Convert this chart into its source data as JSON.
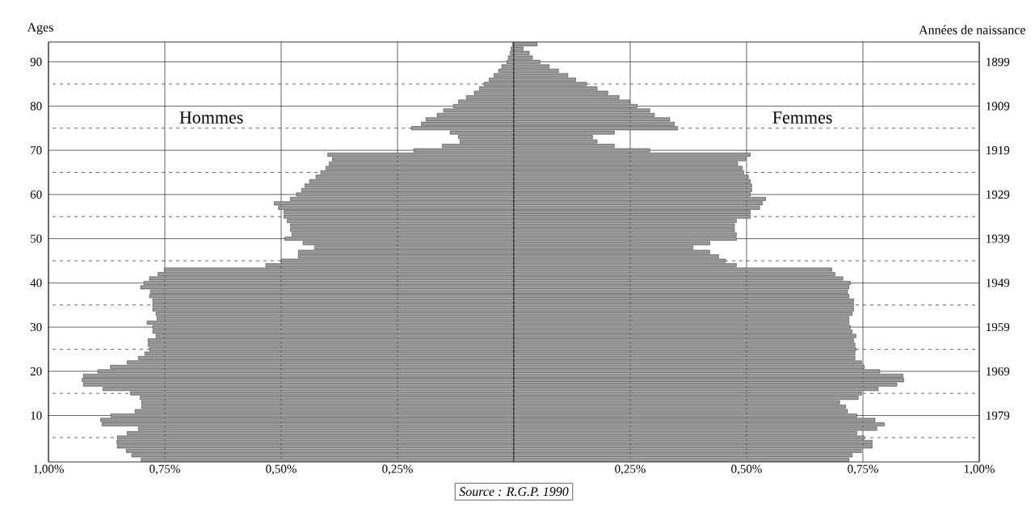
{
  "chart_data": [
    {
      "type": "bar",
      "orientation": "horizontal",
      "ylabel": "Ages",
      "x": [
        0,
        1,
        2,
        3,
        4,
        5,
        6,
        7,
        8,
        9,
        10,
        11,
        12,
        13,
        14,
        15,
        16,
        17,
        18,
        19,
        20,
        21,
        22,
        23,
        24,
        25,
        26,
        27,
        28,
        29,
        30,
        31,
        32,
        33,
        34,
        35,
        36,
        37,
        38,
        39,
        40,
        41,
        42,
        43,
        44,
        45,
        46,
        47,
        48,
        49,
        50,
        51,
        52,
        53,
        54,
        55,
        56,
        57,
        58,
        59,
        60,
        61,
        62,
        63,
        64,
        65,
        66,
        67,
        68,
        69,
        70,
        71,
        72,
        73,
        74,
        75,
        76,
        77,
        78,
        79,
        80,
        81,
        82,
        83,
        84,
        85,
        86,
        87,
        88,
        89,
        90,
        91,
        92,
        93,
        94
      ],
      "series": [
        {
          "name": "Hommes",
          "color": "#9a9a9a",
          "values": [
            0.801,
            0.821,
            0.833,
            0.852,
            0.853,
            0.852,
            0.831,
            0.807,
            0.885,
            0.888,
            0.866,
            0.814,
            0.8,
            0.8,
            0.803,
            0.824,
            0.883,
            0.925,
            0.928,
            0.925,
            0.894,
            0.867,
            0.831,
            0.807,
            0.793,
            0.783,
            0.786,
            0.786,
            0.769,
            0.776,
            0.776,
            0.788,
            0.767,
            0.769,
            0.776,
            0.776,
            0.776,
            0.783,
            0.781,
            0.802,
            0.795,
            0.783,
            0.765,
            0.751,
            0.533,
            0.5,
            0.463,
            0.463,
            0.428,
            0.453,
            0.492,
            0.477,
            0.48,
            0.48,
            0.487,
            0.494,
            0.494,
            0.506,
            0.515,
            0.48,
            0.467,
            0.456,
            0.449,
            0.439,
            0.425,
            0.415,
            0.404,
            0.397,
            0.39,
            0.4,
            0.215,
            0.154,
            0.116,
            0.119,
            0.137,
            0.22,
            0.199,
            0.189,
            0.165,
            0.151,
            0.13,
            0.119,
            0.102,
            0.085,
            0.074,
            0.064,
            0.053,
            0.043,
            0.033,
            0.026,
            0.015,
            0.012,
            0.008,
            0.006,
            0.003
          ]
        }
      ],
      "xlim": [
        1,
        0
      ],
      "xticks": [
        {
          "value": 1,
          "label": "1,00%"
        },
        {
          "value": 0.75,
          "label": "0,75%"
        },
        {
          "value": 0.5,
          "label": "0,50%"
        },
        {
          "value": 0.25,
          "label": "0,25%"
        }
      ],
      "ylim": [
        -0.5,
        94.5
      ],
      "yticks": [
        {
          "value": 5,
          "label": null
        },
        10,
        {
          "value": 15,
          "label": null
        },
        20,
        {
          "value": 25,
          "label": null
        },
        30,
        {
          "value": 35,
          "label": null
        },
        40,
        {
          "value": 45,
          "label": null
        },
        50,
        {
          "value": 55,
          "label": null
        },
        60,
        {
          "value": 65,
          "label": null
        },
        70,
        {
          "value": 75,
          "label": null
        },
        80,
        {
          "value": 85,
          "label": null
        },
        90
      ],
      "grid": true,
      "annotations": [
        "Source : R.G.P. 1990"
      ]
    },
    {
      "type": "bar",
      "orientation": "horizontal",
      "ylabel": "Années de naissance",
      "x": [
        1989,
        1988,
        1987,
        1986,
        1985,
        1984,
        1983,
        1982,
        1981,
        1980,
        1979,
        1978,
        1977,
        1976,
        1975,
        1974,
        1973,
        1972,
        1971,
        1970,
        1969,
        1968,
        1967,
        1966,
        1965,
        1964,
        1963,
        1962,
        1961,
        1960,
        1959,
        1958,
        1957,
        1956,
        1955,
        1954,
        1953,
        1952,
        1951,
        1950,
        1949,
        1948,
        1947,
        1946,
        1945,
        1944,
        1943,
        1942,
        1941,
        1940,
        1939,
        1938,
        1937,
        1936,
        1935,
        1934,
        1933,
        1932,
        1931,
        1930,
        1929,
        1928,
        1927,
        1926,
        1925,
        1924,
        1923,
        1922,
        1921,
        1920,
        1919,
        1918,
        1917,
        1916,
        1915,
        1914,
        1913,
        1912,
        1911,
        1910,
        1909,
        1908,
        1907,
        1906,
        1905,
        1904,
        1903,
        1902,
        1901,
        1900,
        1899,
        1898,
        1897,
        1896,
        1895
      ],
      "series": [
        {
          "name": "Femmes",
          "color": "#9a9a9a",
          "values": [
            0.72,
            0.727,
            0.747,
            0.77,
            0.77,
            0.753,
            0.737,
            0.78,
            0.796,
            0.776,
            0.737,
            0.717,
            0.713,
            0.7,
            0.74,
            0.747,
            0.783,
            0.823,
            0.838,
            0.836,
            0.786,
            0.753,
            0.747,
            0.733,
            0.733,
            0.735,
            0.733,
            0.73,
            0.735,
            0.727,
            0.723,
            0.72,
            0.72,
            0.727,
            0.73,
            0.73,
            0.73,
            0.72,
            0.717,
            0.72,
            0.723,
            0.707,
            0.69,
            0.683,
            0.478,
            0.455,
            0.44,
            0.421,
            0.385,
            0.421,
            0.478,
            0.478,
            0.474,
            0.474,
            0.478,
            0.508,
            0.508,
            0.528,
            0.534,
            0.541,
            0.508,
            0.511,
            0.511,
            0.508,
            0.504,
            0.494,
            0.491,
            0.481,
            0.498,
            0.508,
            0.292,
            0.216,
            0.179,
            0.169,
            0.216,
            0.352,
            0.345,
            0.335,
            0.302,
            0.292,
            0.265,
            0.249,
            0.226,
            0.202,
            0.179,
            0.156,
            0.133,
            0.116,
            0.096,
            0.076,
            0.056,
            0.04,
            0.033,
            0.02,
            0.05
          ]
        }
      ],
      "xlim": [
        0,
        1
      ],
      "xticks": [
        {
          "value": 0.25,
          "label": "0,25%"
        },
        {
          "value": 0.5,
          "label": "0,50%"
        },
        {
          "value": 0.75,
          "label": "0,75%"
        },
        {
          "value": 1,
          "label": "1,00%"
        }
      ],
      "ylim": [
        1989.5,
        1894.5
      ],
      "yticks": [
        {
          "value": 1984,
          "label": null
        },
        1979,
        {
          "value": 1974,
          "label": null
        },
        1969,
        {
          "value": 1964,
          "label": null
        },
        1959,
        {
          "value": 1954,
          "label": null
        },
        1949,
        {
          "value": 1944,
          "label": null
        },
        1939,
        {
          "value": 1934,
          "label": null
        },
        1929,
        {
          "value": 1924,
          "label": null
        },
        1919,
        {
          "value": 1914,
          "label": null
        },
        1909,
        {
          "value": 1904,
          "label": null
        },
        1899
      ],
      "grid": true
    }
  ]
}
